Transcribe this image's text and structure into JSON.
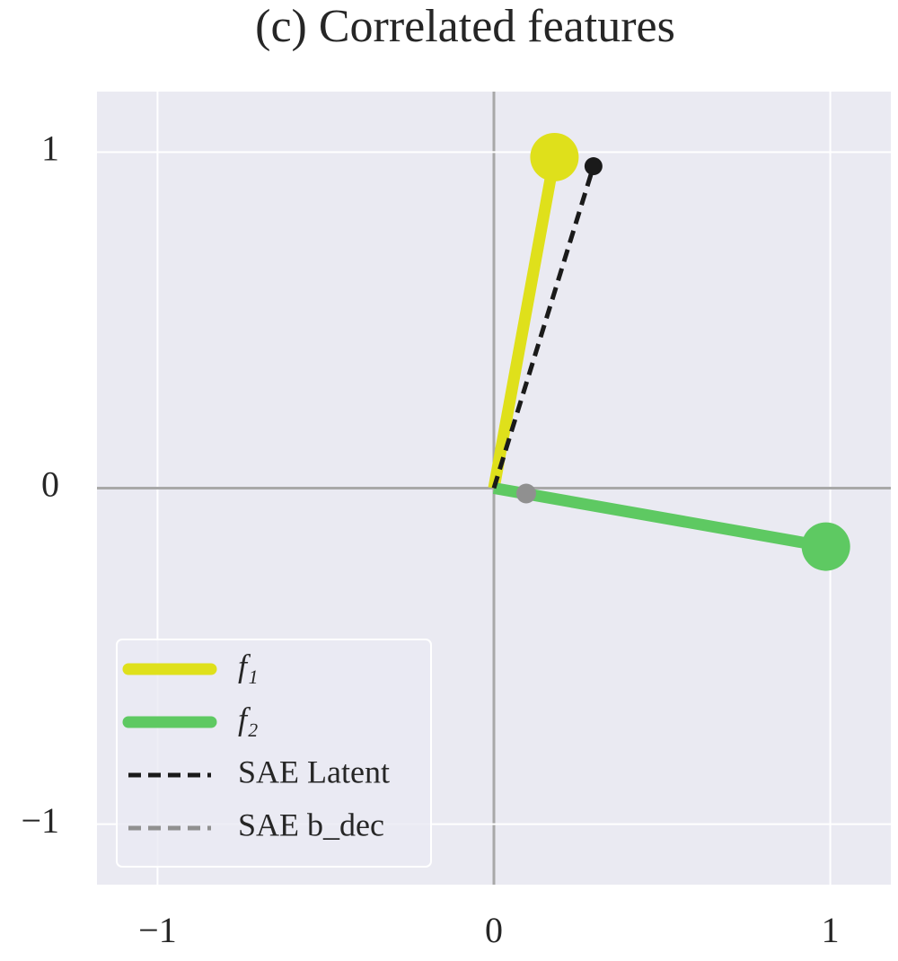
{
  "chart_data": {
    "type": "line",
    "title": "(c) Correlated features",
    "xlim": [
      -1.18,
      1.18
    ],
    "ylim": [
      -1.18,
      1.18
    ],
    "xticks": [
      {
        "value": -1,
        "label": "−1"
      },
      0,
      1
    ],
    "yticks": [
      {
        "value": -1,
        "label": "−1"
      },
      0,
      1
    ],
    "grid": true,
    "legend": "lower left",
    "series": [
      {
        "name": "f₁",
        "color": "#dfe01b",
        "x": [
          0,
          0.18
        ],
        "values": [
          0,
          0.985
        ],
        "dashed": false
      },
      {
        "name": "f₂",
        "color": "#5ec962",
        "x": [
          0,
          0.987
        ],
        "values": [
          0,
          -0.174
        ],
        "dashed": false
      },
      {
        "name": "SAE Latent",
        "color": "#1a1a1a",
        "x": [
          0,
          0.296
        ],
        "values": [
          0,
          0.958
        ],
        "dashed": true
      },
      {
        "name": "SAE b_dec",
        "color": "#909090",
        "x": [
          0.096
        ],
        "values": [
          -0.016
        ],
        "dashed": true
      }
    ]
  }
}
